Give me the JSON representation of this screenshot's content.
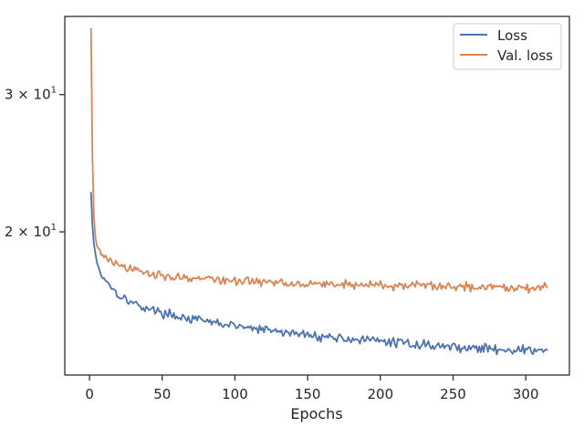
{
  "chart_data": {
    "type": "line",
    "title": "",
    "xlabel": "Epochs",
    "ylabel": "",
    "xlim": [
      -17,
      330
    ],
    "ylim": [
      13.1,
      37.8
    ],
    "yscale": "log",
    "grid": false,
    "legend_position": "top-right",
    "x_ticks": [
      0,
      50,
      100,
      150,
      200,
      250,
      300
    ],
    "x_tick_labels": [
      "0",
      "50",
      "100",
      "150",
      "200",
      "250",
      "300"
    ],
    "y_ticks": [
      20,
      30
    ],
    "y_tick_labels": [
      "2 × 10",
      "3 × 10"
    ],
    "y_tick_exponent": "1",
    "series": [
      {
        "name": "Loss",
        "color": "#4c72b0",
        "x": [
          1,
          2,
          3,
          5,
          8,
          12,
          16,
          20,
          25,
          30,
          35,
          40,
          50,
          60,
          70,
          80,
          90,
          100,
          110,
          120,
          130,
          140,
          150,
          160,
          170,
          180,
          190,
          200,
          210,
          220,
          230,
          240,
          250,
          260,
          270,
          280,
          290,
          300,
          310,
          315
        ],
        "y": [
          22.5,
          20.4,
          19.3,
          18.3,
          17.6,
          17.3,
          16.9,
          16.6,
          16.4,
          16.2,
          16.05,
          15.95,
          15.75,
          15.6,
          15.45,
          15.35,
          15.25,
          15.15,
          15.05,
          14.97,
          14.9,
          14.82,
          14.75,
          14.68,
          14.63,
          14.57,
          14.52,
          14.48,
          14.43,
          14.38,
          14.33,
          14.28,
          14.24,
          14.2,
          14.17,
          14.14,
          14.12,
          14.1,
          14.08,
          14.05
        ],
        "noise": 0.12
      },
      {
        "name": "Val. loss",
        "color": "#dd8452",
        "x": [
          1,
          2,
          3,
          4,
          5,
          7,
          10,
          15,
          20,
          30,
          40,
          50,
          60,
          70,
          80,
          90,
          100,
          110,
          120,
          130,
          140,
          150,
          160,
          170,
          180,
          190,
          200,
          220,
          240,
          260,
          280,
          300,
          315
        ],
        "y": [
          36.5,
          25.0,
          21.0,
          19.7,
          19.2,
          18.9,
          18.6,
          18.3,
          18.1,
          17.85,
          17.7,
          17.6,
          17.5,
          17.45,
          17.4,
          17.35,
          17.3,
          17.28,
          17.25,
          17.23,
          17.2,
          17.18,
          17.15,
          17.13,
          17.12,
          17.1,
          17.08,
          17.06,
          17.04,
          17.02,
          17.0,
          16.98,
          16.97
        ],
        "noise": 0.14
      }
    ]
  }
}
